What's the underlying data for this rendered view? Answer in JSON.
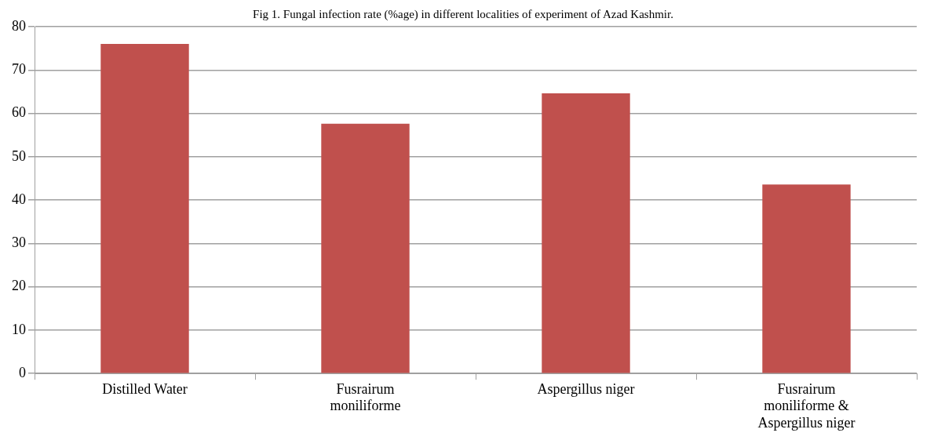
{
  "chart_data": {
    "type": "bar",
    "title": "Fig 1. Fungal infection rate (%age) in different localities of experiment of Azad Kashmir.",
    "categories": [
      "Distilled Water",
      "Fusrairum moniliforme",
      "Aspergillus niger",
      "Fusrairum moniliforme & Aspergillus niger"
    ],
    "values": [
      76,
      57.6,
      64.6,
      43.6
    ],
    "color": "#c0504d",
    "ylim": [
      0,
      80
    ],
    "yticks": [
      0,
      10,
      20,
      30,
      40,
      50,
      60,
      70,
      80
    ],
    "grid": "y",
    "legend": false
  }
}
